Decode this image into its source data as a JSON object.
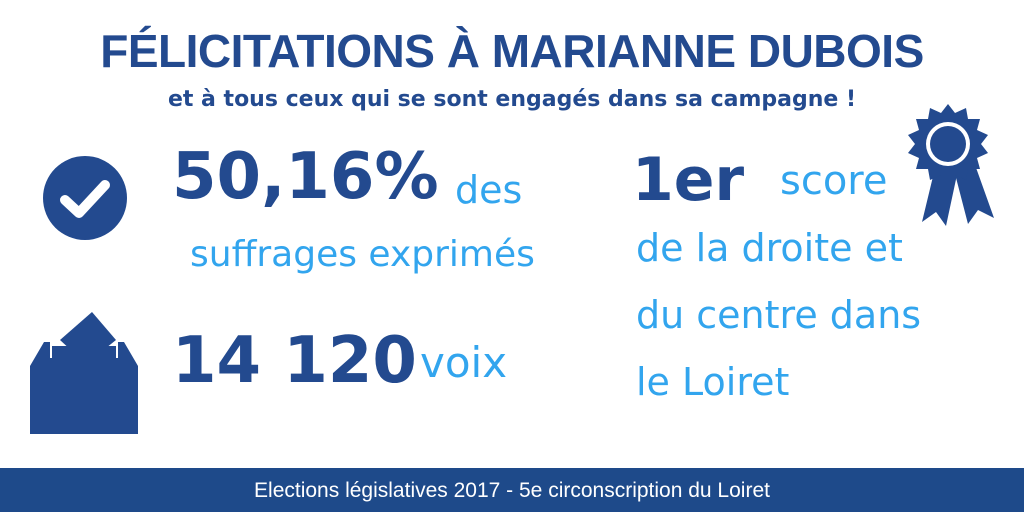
{
  "header": {
    "title": "FÉLICITATIONS À MARIANNE DUBOIS",
    "subtitle": "et à tous ceux qui se sont engagés dans sa campagne !"
  },
  "stats": {
    "percent": {
      "value": "50,16%",
      "suffix": "des",
      "line2": "suffrages exprimés",
      "icon": "check-circle-icon"
    },
    "votes": {
      "value": "14 120",
      "suffix": "voix",
      "icon": "ballot-box-icon"
    },
    "rank": {
      "value": "1er",
      "word": "score",
      "line2": "de la droite et",
      "line3": "du centre dans",
      "line4": "le Loiret",
      "icon": "award-ribbon-icon"
    }
  },
  "footer": {
    "text": "Elections législatives 2017 - 5e circonscription du Loiret"
  },
  "colors": {
    "primary": "#234a8f",
    "accent": "#32a5ee",
    "footer_bg": "#1e4a8a",
    "background": "#ffffff"
  }
}
